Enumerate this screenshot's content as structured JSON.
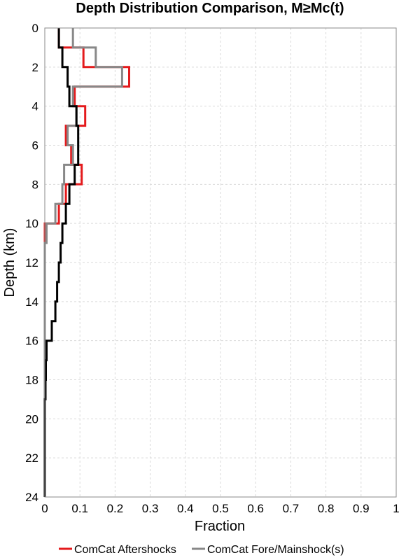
{
  "chart_data": {
    "type": "line",
    "title": "Depth Distribution Comparison, M≥Mc(t)",
    "xlabel": "Fraction",
    "ylabel": "Depth (km)",
    "xlim": [
      0,
      1
    ],
    "ylim": [
      0,
      24
    ],
    "y_inverted": true,
    "grid": true,
    "legend_placement": "bottom",
    "x_ticks": [
      "0",
      "0.1",
      "0.2",
      "0.3",
      "0.4",
      "0.5",
      "0.6",
      "0.7",
      "0.8",
      "0.9",
      "1"
    ],
    "y_ticks": [
      "0",
      "2",
      "4",
      "6",
      "8",
      "10",
      "12",
      "14",
      "16",
      "18",
      "20",
      "22",
      "24"
    ],
    "depth_bins": [
      0,
      1,
      2,
      3,
      4,
      5,
      6,
      7,
      8,
      9,
      10,
      11,
      12,
      13,
      14,
      15,
      16,
      17,
      18,
      19,
      20,
      21,
      22,
      23,
      24
    ],
    "series": [
      {
        "name": "ComCat Aftershocks",
        "color": "#e41a1c",
        "values": [
          0.04,
          0.11,
          0.24,
          0.085,
          0.115,
          0.06,
          0.075,
          0.105,
          0.06,
          0.04,
          0.0,
          0.0,
          0.0,
          0.0,
          0.0,
          0.0,
          0.0,
          0.0,
          0.0,
          0.0,
          0.0,
          0.0,
          0.0,
          0.0
        ]
      },
      {
        "name": "ComCat Fore/Mainshock(s)",
        "color": "#888888",
        "values": [
          0.08,
          0.145,
          0.22,
          0.08,
          0.09,
          0.065,
          0.08,
          0.055,
          0.05,
          0.03,
          0.005,
          0.0,
          0.0,
          0.0,
          0.0,
          0.0,
          0.0,
          0.0,
          0.0,
          0.0,
          0.0,
          0.0,
          0.0,
          0.0
        ]
      },
      {
        "color": "#000000",
        "values": [
          0.04,
          0.05,
          0.065,
          0.07,
          0.09,
          0.095,
          0.095,
          0.085,
          0.07,
          0.06,
          0.05,
          0.045,
          0.04,
          0.035,
          0.03,
          0.02,
          0.005,
          0.003,
          0.002,
          0.0,
          0.0,
          0.0,
          0.0,
          0.0
        ]
      }
    ]
  }
}
